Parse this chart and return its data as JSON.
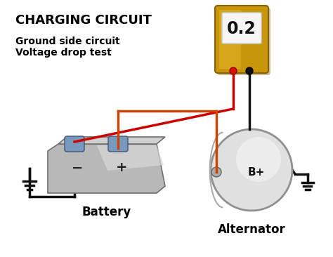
{
  "title": "CHARGING CIRCUIT",
  "subtitle_line1": "Ground side circuit",
  "subtitle_line2": "Voltage drop test",
  "meter_value": "0.2",
  "battery_label": "Battery",
  "alternator_label": "Alternator",
  "bplus_label": "B+",
  "bg_color": "#ffffff",
  "title_color": "#000000",
  "subtitle_color": "#000000",
  "wire_red_color": "#cc0000",
  "wire_orange_color": "#cc4400",
  "wire_black_color": "#111111",
  "meter_body_color": "#c8960a",
  "meter_body_dark": "#8a6000",
  "meter_screen_color": "#f5f5f5",
  "alternator_color_light": "#e8e8e8",
  "alternator_color_mid": "#c0c0c0",
  "alternator_left_color": "#d0d0d0",
  "ground_color": "#111111",
  "terminal_color": "#7799bb",
  "terminal_edge": "#445577"
}
